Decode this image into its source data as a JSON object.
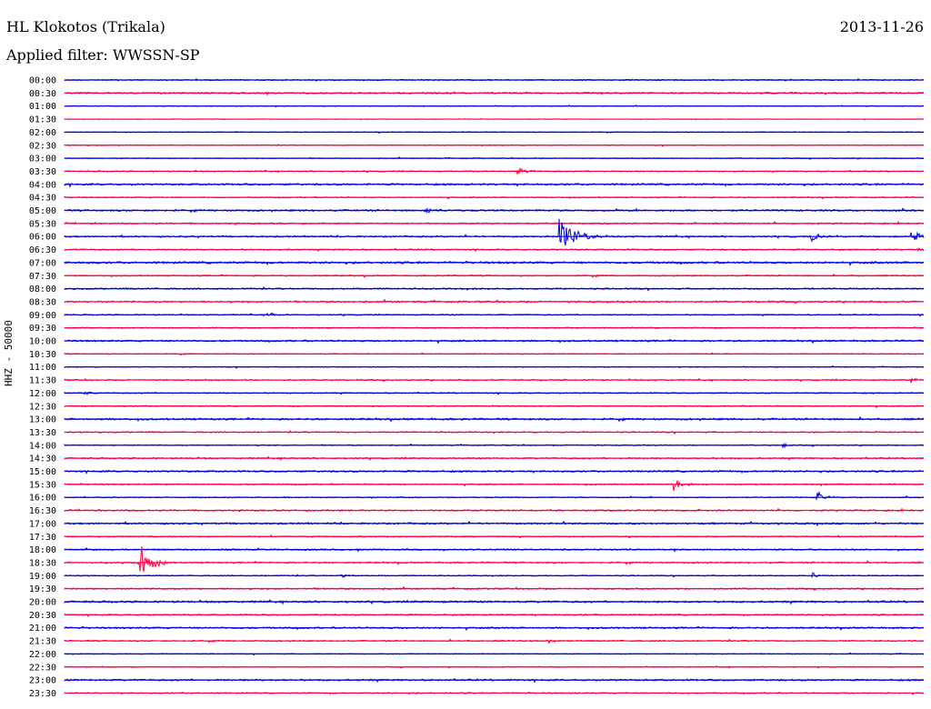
{
  "header": {
    "station": "HL Klokotos (Trikala)",
    "date": "2013-11-26",
    "filter_label": "Applied filter: WWSSN-SP"
  },
  "axis": {
    "ylabel": "HHZ - 50000"
  },
  "colors": {
    "even": "#0000e0",
    "odd": "#ff0044",
    "text": "#000000",
    "background": "#ffffff"
  },
  "chart_data": {
    "type": "line",
    "chart_kind": "helicorder",
    "rows": [
      "00:00",
      "00:30",
      "01:00",
      "01:30",
      "02:00",
      "02:30",
      "03:00",
      "03:30",
      "04:00",
      "04:30",
      "05:00",
      "05:30",
      "06:00",
      "06:30",
      "07:00",
      "07:30",
      "08:00",
      "08:30",
      "09:00",
      "09:30",
      "10:00",
      "10:30",
      "11:00",
      "11:30",
      "12:00",
      "12:30",
      "13:00",
      "13:30",
      "14:00",
      "14:30",
      "15:00",
      "15:30",
      "16:00",
      "16:30",
      "17:00",
      "17:30",
      "18:00",
      "18:30",
      "19:00",
      "19:30",
      "20:00",
      "20:30",
      "21:00",
      "21:30",
      "22:00",
      "22:30",
      "23:00",
      "23:30"
    ],
    "row_minutes": 30,
    "noise": [
      0.6,
      0.8,
      0.4,
      0.3,
      0.4,
      0.5,
      0.5,
      0.6,
      1.0,
      0.6,
      0.9,
      0.8,
      0.8,
      0.7,
      1.1,
      0.7,
      0.8,
      0.9,
      0.6,
      0.6,
      0.9,
      0.5,
      0.5,
      0.7,
      0.6,
      0.6,
      1.0,
      0.7,
      0.6,
      0.8,
      0.9,
      0.7,
      0.6,
      0.8,
      0.9,
      0.6,
      0.8,
      0.8,
      0.6,
      0.8,
      1.0,
      0.7,
      0.9,
      0.7,
      0.5,
      0.5,
      0.9,
      0.6
    ],
    "events": [
      {
        "row": "03:30",
        "minute": 15.8,
        "amplitude": 4,
        "duration_min": 0.9
      },
      {
        "row": "05:00",
        "minute": 12.6,
        "amplitude": 4,
        "duration_min": 0.7
      },
      {
        "row": "06:00",
        "minute": 17.3,
        "amplitude": 20,
        "duration_min": 1.5
      },
      {
        "row": "06:00",
        "minute": 26.1,
        "amplitude": 5,
        "duration_min": 0.8
      },
      {
        "row": "06:00",
        "minute": 29.6,
        "amplitude": 7,
        "duration_min": 0.8
      },
      {
        "row": "06:30",
        "minute": 29.8,
        "amplitude": 3,
        "duration_min": 0.6
      },
      {
        "row": "09:00",
        "minute": 7.1,
        "amplitude": 4,
        "duration_min": 0.6
      },
      {
        "row": "11:30",
        "minute": 29.6,
        "amplitude": 3,
        "duration_min": 0.6
      },
      {
        "row": "12:00",
        "minute": 0.7,
        "amplitude": 2,
        "duration_min": 0.8
      },
      {
        "row": "14:00",
        "minute": 25.1,
        "amplitude": 3,
        "duration_min": 0.6
      },
      {
        "row": "15:30",
        "minute": 21.3,
        "amplitude": 7,
        "duration_min": 0.8
      },
      {
        "row": "16:00",
        "minute": 26.3,
        "amplitude": 6,
        "duration_min": 0.7
      },
      {
        "row": "18:30",
        "minute": 2.6,
        "amplitude": 25,
        "duration_min": 1.0
      },
      {
        "row": "19:00",
        "minute": 9.7,
        "amplitude": 2,
        "duration_min": 0.5
      },
      {
        "row": "19:00",
        "minute": 26.1,
        "amplitude": 4,
        "duration_min": 0.4
      },
      {
        "row": "21:30",
        "minute": 16.9,
        "amplitude": 2,
        "duration_min": 0.7
      }
    ]
  }
}
